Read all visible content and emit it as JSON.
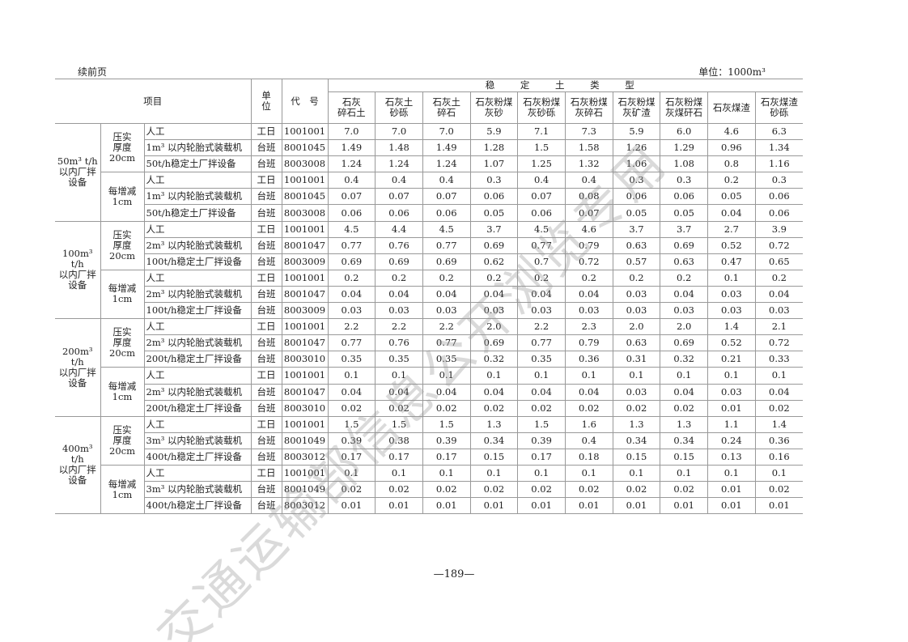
{
  "header": {
    "continued": "续前页",
    "unit_note": "单位：1000m³"
  },
  "table": {
    "col_item": "项目",
    "col_unit": "单\n位",
    "col_code": "代　号",
    "group_header": "稳 定 土 类 型",
    "types": [
      "石灰\n碎石土",
      "石灰土\n砂砾",
      "石灰土\n碎石",
      "石灰粉煤\n灰砂",
      "石灰粉煤\n灰砂砾",
      "石灰粉煤\n灰碎石",
      "石灰粉煤\n灰矿渣",
      "石灰粉煤\n灰煤矸石",
      "石灰煤渣",
      "石灰煤渣\n砂砾"
    ],
    "groups": [
      {
        "name": "50m³ t/h\n以内厂拌\n设备",
        "subs": [
          {
            "name": "压实\n厚度\n20cm",
            "rows": [
              {
                "item": "人工",
                "unit": "工日",
                "code": "1001001",
                "values": [
                  "7.0",
                  "7.0",
                  "7.0",
                  "5.9",
                  "7.1",
                  "7.3",
                  "5.9",
                  "6.0",
                  "4.6",
                  "6.3"
                ]
              },
              {
                "item": "1m³ 以内轮胎式装载机",
                "unit": "台班",
                "code": "8001045",
                "values": [
                  "1.49",
                  "1.48",
                  "1.49",
                  "1.28",
                  "1.5",
                  "1.58",
                  "1.26",
                  "1.29",
                  "0.96",
                  "1.34"
                ]
              },
              {
                "item": "50t/h稳定土厂拌设备",
                "unit": "台班",
                "code": "8003008",
                "values": [
                  "1.24",
                  "1.24",
                  "1.24",
                  "1.07",
                  "1.25",
                  "1.32",
                  "1.06",
                  "1.08",
                  "0.8",
                  "1.16"
                ]
              }
            ]
          },
          {
            "name": "每增减\n1cm",
            "rows": [
              {
                "item": "人工",
                "unit": "工日",
                "code": "1001001",
                "values": [
                  "0.4",
                  "0.4",
                  "0.4",
                  "0.3",
                  "0.4",
                  "0.4",
                  "0.3",
                  "0.3",
                  "0.2",
                  "0.3"
                ]
              },
              {
                "item": "1m³ 以内轮胎式装载机",
                "unit": "台班",
                "code": "8001045",
                "values": [
                  "0.07",
                  "0.07",
                  "0.07",
                  "0.06",
                  "0.07",
                  "0.08",
                  "0.06",
                  "0.06",
                  "0.05",
                  "0.06"
                ]
              },
              {
                "item": "50t/h稳定土厂拌设备",
                "unit": "台班",
                "code": "8003008",
                "values": [
                  "0.06",
                  "0.06",
                  "0.06",
                  "0.05",
                  "0.06",
                  "0.07",
                  "0.05",
                  "0.05",
                  "0.04",
                  "0.06"
                ]
              }
            ]
          }
        ]
      },
      {
        "name": "100m³ t/h\n以内厂拌\n设备",
        "subs": [
          {
            "name": "压实\n厚度\n20cm",
            "rows": [
              {
                "item": "人工",
                "unit": "工日",
                "code": "1001001",
                "values": [
                  "4.5",
                  "4.4",
                  "4.5",
                  "3.7",
                  "4.5",
                  "4.6",
                  "3.7",
                  "3.7",
                  "2.7",
                  "3.9"
                ]
              },
              {
                "item": "2m³ 以内轮胎式装载机",
                "unit": "台班",
                "code": "8001047",
                "values": [
                  "0.77",
                  "0.76",
                  "0.77",
                  "0.69",
                  "0.77",
                  "0.79",
                  "0.63",
                  "0.69",
                  "0.52",
                  "0.72"
                ]
              },
              {
                "item": "100t/h稳定土厂拌设备",
                "unit": "台班",
                "code": "8003009",
                "values": [
                  "0.69",
                  "0.69",
                  "0.69",
                  "0.62",
                  "0.7",
                  "0.72",
                  "0.57",
                  "0.63",
                  "0.47",
                  "0.65"
                ]
              }
            ]
          },
          {
            "name": "每增减\n1cm",
            "rows": [
              {
                "item": "人工",
                "unit": "工日",
                "code": "1001001",
                "values": [
                  "0.2",
                  "0.2",
                  "0.2",
                  "0.2",
                  "0.2",
                  "0.2",
                  "0.2",
                  "0.2",
                  "0.1",
                  "0.2"
                ]
              },
              {
                "item": "2m³ 以内轮胎式装载机",
                "unit": "台班",
                "code": "8001047",
                "values": [
                  "0.04",
                  "0.04",
                  "0.04",
                  "0.04",
                  "0.04",
                  "0.04",
                  "0.03",
                  "0.04",
                  "0.03",
                  "0.04"
                ]
              },
              {
                "item": "100t/h稳定土厂拌设备",
                "unit": "台班",
                "code": "8003009",
                "values": [
                  "0.03",
                  "0.03",
                  "0.03",
                  "0.03",
                  "0.03",
                  "0.03",
                  "0.03",
                  "0.03",
                  "0.03",
                  "0.03"
                ]
              }
            ]
          }
        ]
      },
      {
        "name": "200m³ t/h\n以内厂拌\n设备",
        "subs": [
          {
            "name": "压实\n厚度\n20cm",
            "rows": [
              {
                "item": "人工",
                "unit": "工日",
                "code": "1001001",
                "values": [
                  "2.2",
                  "2.2",
                  "2.2",
                  "2.0",
                  "2.2",
                  "2.3",
                  "2.0",
                  "2.0",
                  "1.4",
                  "2.1"
                ]
              },
              {
                "item": "2m³ 以内轮胎式装载机",
                "unit": "台班",
                "code": "8001047",
                "values": [
                  "0.77",
                  "0.76",
                  "0.77",
                  "0.69",
                  "0.77",
                  "0.79",
                  "0.63",
                  "0.69",
                  "0.52",
                  "0.72"
                ]
              },
              {
                "item": "200t/h稳定土厂拌设备",
                "unit": "台班",
                "code": "8003010",
                "values": [
                  "0.35",
                  "0.35",
                  "0.35",
                  "0.32",
                  "0.35",
                  "0.36",
                  "0.31",
                  "0.32",
                  "0.21",
                  "0.33"
                ]
              }
            ]
          },
          {
            "name": "每增减\n1cm",
            "rows": [
              {
                "item": "人工",
                "unit": "工日",
                "code": "1001001",
                "values": [
                  "0.1",
                  "0.1",
                  "0.1",
                  "0.1",
                  "0.1",
                  "0.1",
                  "0.1",
                  "0.1",
                  "0.1",
                  "0.1"
                ]
              },
              {
                "item": "2m³ 以内轮胎式装载机",
                "unit": "台班",
                "code": "8001047",
                "values": [
                  "0.04",
                  "0.04",
                  "0.04",
                  "0.04",
                  "0.04",
                  "0.04",
                  "0.03",
                  "0.04",
                  "0.03",
                  "0.04"
                ]
              },
              {
                "item": "200t/h稳定土厂拌设备",
                "unit": "台班",
                "code": "8003010",
                "values": [
                  "0.02",
                  "0.02",
                  "0.02",
                  "0.02",
                  "0.02",
                  "0.02",
                  "0.02",
                  "0.02",
                  "0.01",
                  "0.02"
                ]
              }
            ]
          }
        ]
      },
      {
        "name": "400m³ t/h\n以内厂拌\n设备",
        "subs": [
          {
            "name": "压实\n厚度\n20cm",
            "rows": [
              {
                "item": "人工",
                "unit": "工日",
                "code": "1001001",
                "values": [
                  "1.5",
                  "1.5",
                  "1.5",
                  "1.3",
                  "1.5",
                  "1.6",
                  "1.3",
                  "1.3",
                  "1.1",
                  "1.4"
                ]
              },
              {
                "item": "3m³ 以内轮胎式装载机",
                "unit": "台班",
                "code": "8001049",
                "values": [
                  "0.39",
                  "0.38",
                  "0.39",
                  "0.34",
                  "0.39",
                  "0.4",
                  "0.34",
                  "0.34",
                  "0.24",
                  "0.36"
                ]
              },
              {
                "item": "400t/h稳定土厂拌设备",
                "unit": "台班",
                "code": "8003012",
                "values": [
                  "0.17",
                  "0.17",
                  "0.17",
                  "0.15",
                  "0.17",
                  "0.18",
                  "0.15",
                  "0.15",
                  "0.13",
                  "0.16"
                ]
              }
            ]
          },
          {
            "name": "每增减\n1cm",
            "rows": [
              {
                "item": "人工",
                "unit": "工日",
                "code": "1001001",
                "values": [
                  "0.1",
                  "0.1",
                  "0.1",
                  "0.1",
                  "0.1",
                  "0.1",
                  "0.1",
                  "0.1",
                  "0.1",
                  "0.1"
                ]
              },
              {
                "item": "3m³ 以内轮胎式装载机",
                "unit": "台班",
                "code": "8001049",
                "values": [
                  "0.02",
                  "0.02",
                  "0.02",
                  "0.02",
                  "0.02",
                  "0.02",
                  "0.02",
                  "0.02",
                  "0.01",
                  "0.02"
                ]
              },
              {
                "item": "400t/h稳定土厂拌设备",
                "unit": "台班",
                "code": "8003012",
                "values": [
                  "0.01",
                  "0.01",
                  "0.01",
                  "0.01",
                  "0.01",
                  "0.01",
                  "0.01",
                  "0.01",
                  "0.01",
                  "0.01"
                ]
              }
            ]
          }
        ]
      }
    ]
  },
  "footer": {
    "page_number": "—189—"
  },
  "watermark": "交通运输部信息公开浏览专用"
}
